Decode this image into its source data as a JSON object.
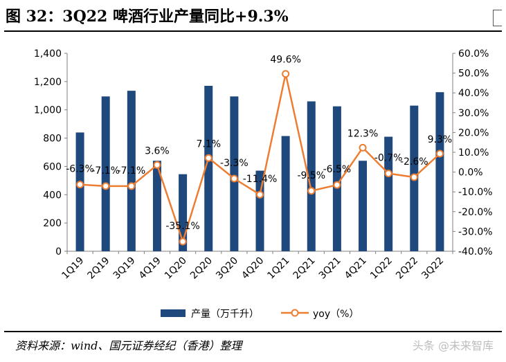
{
  "header": {
    "title": "图 32：3Q22 啤酒行业产量同比+9.3%"
  },
  "footer": {
    "source": "资料来源：wind、国元证券经纪（香港）整理",
    "watermark": "头条 @未来智库"
  },
  "colors": {
    "bar": "#1f497d",
    "line": "#ed7d31",
    "marker_fill": "#ffffff"
  },
  "chart_data": {
    "type": "bar",
    "categories": [
      "1Q19",
      "2Q19",
      "3Q19",
      "4Q19",
      "1Q20",
      "2Q20",
      "3Q20",
      "4Q20",
      "1Q21",
      "2Q21",
      "3Q21",
      "4Q21",
      "1Q22",
      "2Q22",
      "3Q22"
    ],
    "series": [
      {
        "name": "产量（万千升）",
        "type": "bar",
        "axis": "left",
        "values": [
          840,
          1095,
          1135,
          640,
          545,
          1170,
          1095,
          570,
          815,
          1060,
          1025,
          640,
          810,
          1030,
          1125
        ]
      },
      {
        "name": "yoy（%）",
        "type": "line",
        "axis": "right",
        "values": [
          -6.3,
          -7.1,
          -7.1,
          3.6,
          -35.1,
          7.1,
          -3.3,
          -11.4,
          49.6,
          -9.5,
          -6.5,
          12.3,
          -0.7,
          -2.6,
          9.3
        ],
        "labels": [
          "-6.3%",
          "-7.1%",
          "-7.1%",
          "3.6%",
          "-35.1%",
          "7.1%",
          "-3.3%",
          "-11.4%",
          "49.6%",
          "-9.5%",
          "-6.5%",
          "12.3%",
          "-0.7%",
          "-2.6%",
          "9.3%"
        ]
      }
    ],
    "y_left": {
      "min": 0,
      "max": 1400,
      "step": 200,
      "ticks": [
        "0",
        "200",
        "400",
        "600",
        "800",
        "1,000",
        "1,200",
        "1,400"
      ]
    },
    "y_right": {
      "min": -40,
      "max": 60,
      "step": 10,
      "ticks": [
        "-40.0%",
        "-30.0%",
        "-20.0%",
        "-10.0%",
        "0.0%",
        "10.0%",
        "20.0%",
        "30.0%",
        "40.0%",
        "50.0%",
        "60.0%"
      ]
    },
    "legend": {
      "position": "bottom",
      "items": [
        "产量（万千升）",
        "yoy（%）"
      ]
    },
    "grid": false
  }
}
